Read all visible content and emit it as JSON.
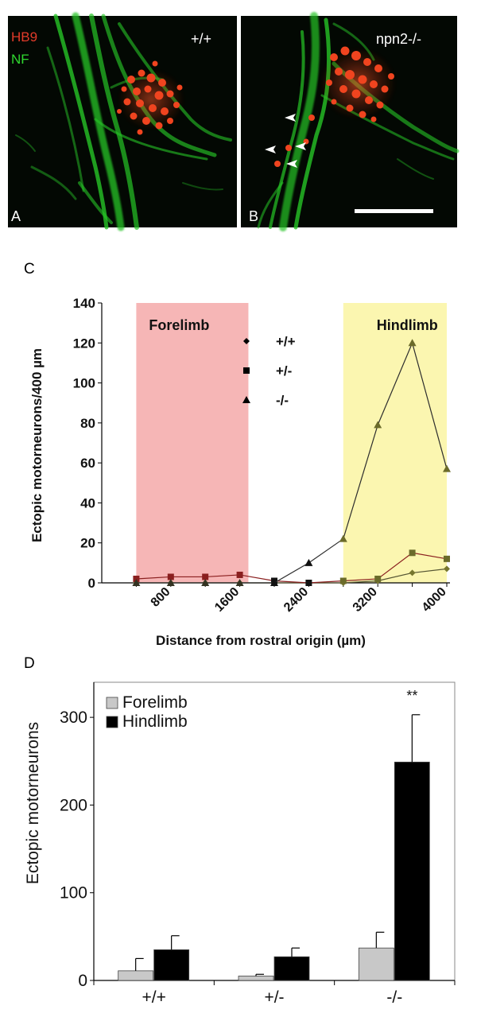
{
  "panels": {
    "A": {
      "letter": "A",
      "genotype": "+/+",
      "stain_labels": [
        {
          "text": "HB9",
          "color": "#e23b2a"
        },
        {
          "text": "NF",
          "color": "#2fd82f"
        }
      ]
    },
    "B": {
      "letter": "B",
      "genotype": "npn2-/-"
    },
    "C": {
      "letter": "C"
    },
    "D": {
      "letter": "D"
    }
  },
  "colors": {
    "forelimb_band": "#f6b6b6",
    "hindlimb_band": "#fbf6b0",
    "line_minus_minus": "#2d2d2d",
    "line_plus_minus": "#6b6b3a",
    "line_plus_plus": "#555533",
    "bar_forelimb": "#c8c8c8",
    "bar_hindlimb": "#000000",
    "micro_background": "#030803",
    "fiber_green": "#27c427",
    "cell_red": "#f0441f"
  },
  "chart_data": [
    {
      "panel": "C",
      "type": "line",
      "ylabel": "Ectopic motorneurons/400 µm",
      "xlabel": "Distance from rostral origin (µm)",
      "xlim": [
        0,
        4000
      ],
      "ylim": [
        0,
        140
      ],
      "x_ticks": [
        "800",
        "1600",
        "2400",
        "3200",
        "4000"
      ],
      "x_tick_values": [
        800,
        1600,
        2400,
        3200,
        4000
      ],
      "y_ticks": [
        "0",
        "20",
        "40",
        "60",
        "80",
        "100",
        "120",
        "140"
      ],
      "y_tick_values": [
        0,
        20,
        40,
        60,
        80,
        100,
        120,
        140
      ],
      "regions": [
        {
          "label": "Forelimb",
          "x_start": 400,
          "x_end": 1700
        },
        {
          "label": "Hindlimb",
          "x_start": 2800,
          "x_end": 4000
        }
      ],
      "legend_position": "top-center",
      "series": [
        {
          "name": "+/+",
          "marker": "diamond",
          "x": [
            400,
            800,
            1200,
            1600,
            2000,
            2400,
            2800,
            3200,
            3600,
            4000
          ],
          "y": [
            0,
            0,
            0,
            0,
            0,
            0,
            0,
            1,
            5,
            7
          ]
        },
        {
          "name": "+/-",
          "marker": "square",
          "x": [
            400,
            800,
            1200,
            1600,
            2000,
            2400,
            2800,
            3200,
            3600,
            4000
          ],
          "y": [
            2,
            3,
            3,
            4,
            1,
            0,
            1,
            2,
            15,
            12
          ]
        },
        {
          "name": "-/-",
          "marker": "triangle",
          "x": [
            400,
            800,
            1200,
            1600,
            2000,
            2400,
            2800,
            3200,
            3600,
            4000
          ],
          "y": [
            0,
            0,
            0,
            0,
            0,
            10,
            22,
            79,
            120,
            57
          ]
        }
      ]
    },
    {
      "panel": "D",
      "type": "bar",
      "ylabel": "Ectopic motorneurons",
      "xlabel": "",
      "ylim": [
        0,
        340
      ],
      "y_ticks": [
        "0",
        "100",
        "200",
        "300"
      ],
      "y_tick_values": [
        0,
        100,
        200,
        300
      ],
      "categories": [
        "+/+",
        "+/-",
        "-/-"
      ],
      "legend_position": "top-left",
      "series": [
        {
          "name": "Forelimb",
          "values": [
            11,
            5,
            37
          ],
          "errors": [
            14,
            2,
            18
          ]
        },
        {
          "name": "Hindlimb",
          "values": [
            35,
            27,
            249
          ],
          "errors": [
            16,
            10,
            54
          ]
        }
      ],
      "annotations": [
        {
          "text": "**",
          "category": "-/-",
          "series": "Hindlimb"
        }
      ]
    }
  ]
}
